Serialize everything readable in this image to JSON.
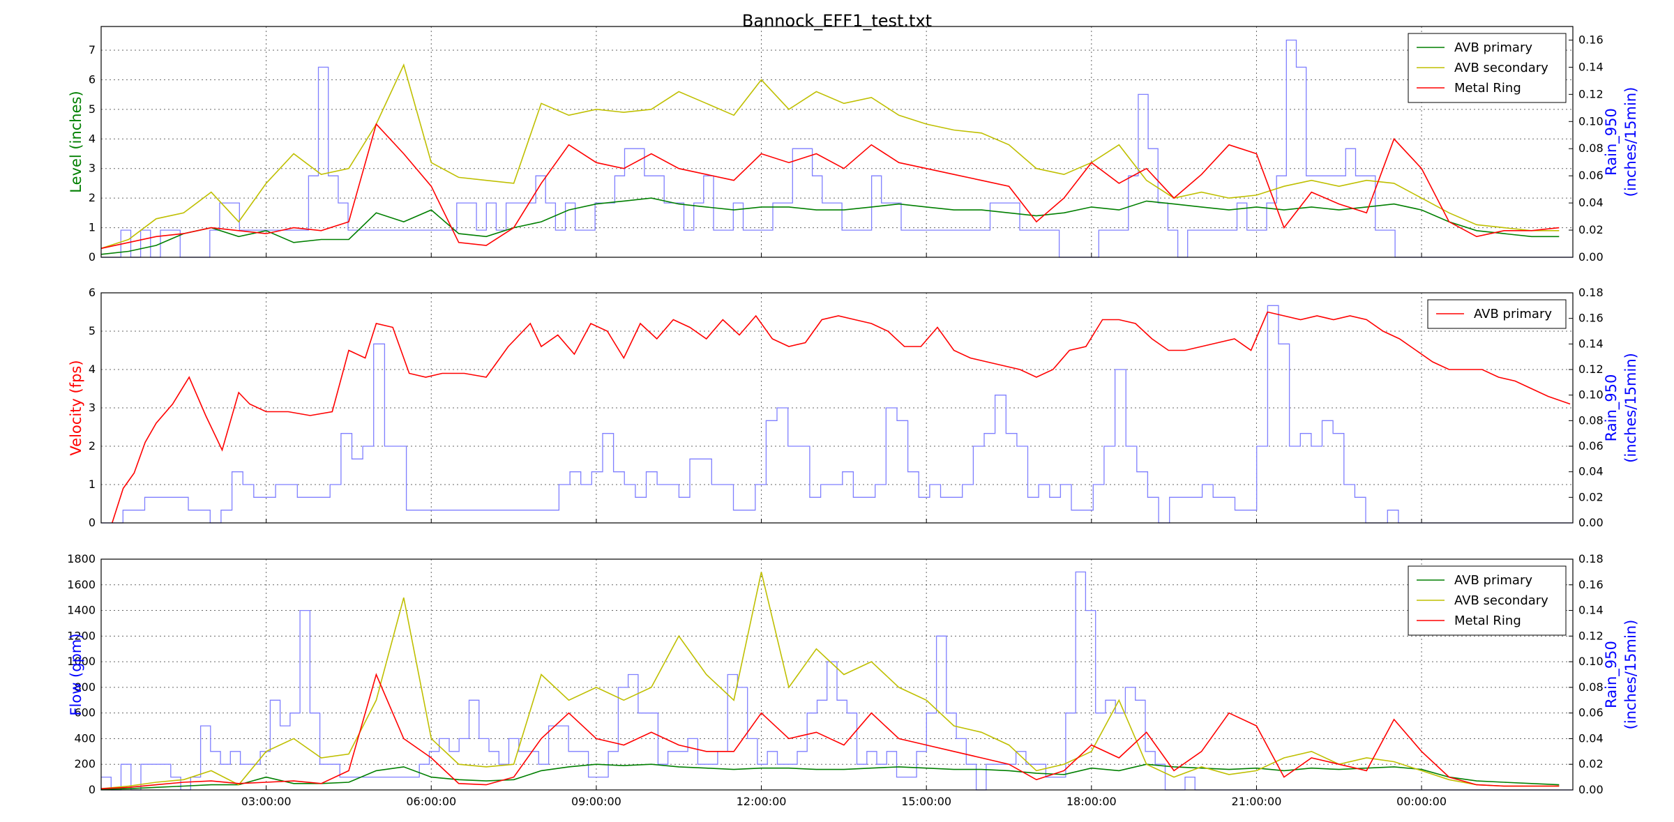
{
  "title": "Bannock_EFF1_test.txt",
  "colors": {
    "green": "#007f00",
    "yellow": "#bfbf00",
    "red": "#ff0000",
    "blue": "#0000ff",
    "rain": "#7f7fff"
  },
  "x_ticks": [
    "03:00:00",
    "06:00:00",
    "09:00:00",
    "12:00:00",
    "15:00:00",
    "18:00:00",
    "21:00:00",
    "00:00:00"
  ],
  "chart_data": [
    {
      "type": "line",
      "title": "Bannock_EFF1_test.txt",
      "ylabel": "Level (inches)",
      "y2label_line1": "Rain_950",
      "y2label_line2": "(inches/15min)",
      "ylim": [
        0,
        7.8
      ],
      "y2lim": [
        0,
        0.17
      ],
      "yticks": [
        "0",
        "1",
        "2",
        "3",
        "4",
        "5",
        "6",
        "7"
      ],
      "y2ticks": [
        "0.00",
        "0.02",
        "0.04",
        "0.06",
        "0.08",
        "0.10",
        "0.12",
        "0.14",
        "0.16"
      ],
      "legend": "top-right",
      "legend_entries": [
        "AVB primary",
        "AVB secondary",
        "Metal Ring"
      ],
      "x_hours": [
        0,
        0.5,
        1,
        1.5,
        2,
        2.5,
        3,
        3.5,
        4,
        4.5,
        5,
        5.5,
        6,
        6.5,
        7,
        7.5,
        8,
        8.5,
        9,
        9.5,
        10,
        10.5,
        11,
        11.5,
        12,
        12.5,
        13,
        13.5,
        14,
        14.5,
        15,
        15.5,
        16,
        16.5,
        17,
        17.5,
        18,
        18.5,
        19,
        19.5,
        20,
        20.5,
        21,
        21.5,
        22,
        22.5,
        23,
        23.5,
        24,
        24.5,
        25,
        25.5,
        26,
        26.5
      ],
      "series": [
        {
          "name": "AVB primary",
          "color": "#007f00",
          "values": [
            0.1,
            0.2,
            0.4,
            0.8,
            1.0,
            0.7,
            0.9,
            0.5,
            0.6,
            0.6,
            1.5,
            1.2,
            1.6,
            0.8,
            0.7,
            1.0,
            1.2,
            1.6,
            1.8,
            1.9,
            2.0,
            1.8,
            1.7,
            1.6,
            1.7,
            1.7,
            1.6,
            1.6,
            1.7,
            1.8,
            1.7,
            1.6,
            1.6,
            1.5,
            1.4,
            1.5,
            1.7,
            1.6,
            1.9,
            1.8,
            1.7,
            1.6,
            1.7,
            1.6,
            1.7,
            1.6,
            1.7,
            1.8,
            1.6,
            1.2,
            0.9,
            0.8,
            0.7,
            0.7
          ]
        },
        {
          "name": "AVB secondary",
          "color": "#bfbf00",
          "values": [
            0.3,
            0.6,
            1.3,
            1.5,
            2.2,
            1.2,
            2.5,
            3.5,
            2.8,
            3.0,
            4.5,
            6.5,
            3.2,
            2.7,
            2.6,
            2.5,
            5.2,
            4.8,
            5.0,
            4.9,
            5.0,
            5.6,
            5.2,
            4.8,
            6.0,
            5.0,
            5.6,
            5.2,
            5.4,
            4.8,
            4.5,
            4.3,
            4.2,
            3.8,
            3.0,
            2.8,
            3.2,
            3.8,
            2.6,
            2.0,
            2.2,
            2.0,
            2.1,
            2.4,
            2.6,
            2.4,
            2.6,
            2.5,
            2.0,
            1.5,
            1.1,
            1.0,
            0.9,
            0.9
          ]
        },
        {
          "name": "Metal Ring",
          "color": "#ff0000",
          "values": [
            0.3,
            0.5,
            0.7,
            0.8,
            1.0,
            0.9,
            0.8,
            1.0,
            0.9,
            1.2,
            4.5,
            3.5,
            2.4,
            0.5,
            0.4,
            1.0,
            2.5,
            3.8,
            3.2,
            3.0,
            3.5,
            3.0,
            2.8,
            2.6,
            3.5,
            3.2,
            3.5,
            3.0,
            3.8,
            3.2,
            3.0,
            2.8,
            2.6,
            2.4,
            1.2,
            2.0,
            3.2,
            2.5,
            3.0,
            2.0,
            2.8,
            3.8,
            3.5,
            1.0,
            2.2,
            1.8,
            1.5,
            4.0,
            3.0,
            1.2,
            0.7,
            0.9,
            0.9,
            1.0
          ]
        }
      ],
      "rain_steps": [
        0,
        0,
        0.02,
        0,
        0.02,
        0,
        0.02,
        0.02,
        0,
        0,
        0,
        0.02,
        0.04,
        0.04,
        0.02,
        0.02,
        0.02,
        0.02,
        0.02,
        0.02,
        0.02,
        0.06,
        0.14,
        0.06,
        0.04,
        0.02,
        0.02,
        0.02,
        0.02,
        0.02,
        0.02,
        0.02,
        0.02,
        0.02,
        0.02,
        0.02,
        0.04,
        0.04,
        0.02,
        0.04,
        0.02,
        0.04,
        0.04,
        0.04,
        0.06,
        0.04,
        0.02,
        0.04,
        0.02,
        0.02,
        0.04,
        0.04,
        0.06,
        0.08,
        0.08,
        0.06,
        0.06,
        0.04,
        0.04,
        0.02,
        0.04,
        0.06,
        0.02,
        0.02,
        0.04,
        0.02,
        0.02,
        0.02,
        0.04,
        0.04,
        0.08,
        0.08,
        0.06,
        0.04,
        0.04,
        0.02,
        0.02,
        0.02,
        0.06,
        0.04,
        0.04,
        0.02,
        0.02,
        0.02,
        0.02,
        0.02,
        0.02,
        0.02,
        0.02,
        0.02,
        0.04,
        0.04,
        0.04,
        0.02,
        0.02,
        0.02,
        0.02,
        0,
        0,
        0,
        0,
        0.02,
        0.02,
        0.02,
        0.06,
        0.12,
        0.08,
        0.04,
        0.02,
        0,
        0.02,
        0.02,
        0.02,
        0.02,
        0.02,
        0.04,
        0.02,
        0.02,
        0.04,
        0.06,
        0.16,
        0.14,
        0.06,
        0.06,
        0.06,
        0.06,
        0.08,
        0.06,
        0.06,
        0.02,
        0.02,
        0,
        0,
        0,
        0,
        0,
        0,
        0,
        0,
        0,
        0,
        0,
        0,
        0,
        0,
        0,
        0,
        0,
        0
      ]
    },
    {
      "type": "line",
      "ylabel": "Velocity (fps)",
      "y2label_line1": "Rain_950",
      "y2label_line2": "(inches/15min)",
      "ylim": [
        0,
        6
      ],
      "y2lim": [
        0,
        0.18
      ],
      "yticks": [
        "0",
        "1",
        "2",
        "3",
        "4",
        "5",
        "6"
      ],
      "y2ticks": [
        "0.00",
        "0.02",
        "0.04",
        "0.06",
        "0.08",
        "0.10",
        "0.12",
        "0.14",
        "0.16",
        "0.18"
      ],
      "legend": "top-right",
      "legend_entries": [
        "AVB primary"
      ],
      "x_hours": [
        0.2,
        0.4,
        0.6,
        0.8,
        1.0,
        1.3,
        1.6,
        1.9,
        2.2,
        2.5,
        2.7,
        3.0,
        3.4,
        3.8,
        4.2,
        4.5,
        4.8,
        5.0,
        5.3,
        5.6,
        5.9,
        6.2,
        6.6,
        7.0,
        7.4,
        7.8,
        8.0,
        8.3,
        8.6,
        8.9,
        9.2,
        9.5,
        9.8,
        10.1,
        10.4,
        10.7,
        11.0,
        11.3,
        11.6,
        11.9,
        12.2,
        12.5,
        12.8,
        13.1,
        13.4,
        13.7,
        14.0,
        14.3,
        14.6,
        14.9,
        15.2,
        15.5,
        15.8,
        16.1,
        16.4,
        16.7,
        17.0,
        17.3,
        17.6,
        17.9,
        18.2,
        18.5,
        18.8,
        19.1,
        19.4,
        19.7,
        20.0,
        20.3,
        20.6,
        20.9,
        21.2,
        21.5,
        21.8,
        22.1,
        22.4,
        22.7,
        23.0,
        23.3,
        23.6,
        23.9,
        24.2,
        24.5,
        24.8,
        25.1,
        25.4,
        25.7,
        26.0,
        26.3,
        26.7
      ],
      "series": [
        {
          "name": "AVB primary",
          "color": "#ff0000",
          "values": [
            0,
            0.9,
            1.3,
            2.1,
            2.6,
            3.1,
            3.8,
            2.8,
            1.9,
            3.4,
            3.1,
            2.9,
            2.9,
            2.8,
            2.9,
            4.5,
            4.3,
            5.2,
            5.1,
            3.9,
            3.8,
            3.9,
            3.9,
            3.8,
            4.6,
            5.2,
            4.6,
            4.9,
            4.4,
            5.2,
            5.0,
            4.3,
            5.2,
            4.8,
            5.3,
            5.1,
            4.8,
            5.3,
            4.9,
            5.4,
            4.8,
            4.6,
            4.7,
            5.3,
            5.4,
            5.3,
            5.2,
            5.0,
            4.6,
            4.6,
            5.1,
            4.5,
            4.3,
            4.2,
            4.1,
            4.0,
            3.8,
            4.0,
            4.5,
            4.6,
            5.3,
            5.3,
            5.2,
            4.8,
            4.5,
            4.5,
            4.6,
            4.7,
            4.8,
            4.5,
            5.5,
            5.4,
            5.3,
            5.4,
            5.3,
            5.4,
            5.3,
            5.0,
            4.8,
            4.5,
            4.2,
            4.0,
            4.0,
            4.0,
            3.8,
            3.7,
            3.5,
            3.3,
            3.1
          ]
        }
      ],
      "rain_steps": [
        0,
        0,
        0.01,
        0.01,
        0.02,
        0.02,
        0.02,
        0.02,
        0.01,
        0.01,
        0,
        0.01,
        0.04,
        0.03,
        0.02,
        0.02,
        0.03,
        0.03,
        0.02,
        0.02,
        0.02,
        0.03,
        0.07,
        0.05,
        0.06,
        0.14,
        0.06,
        0.06,
        0.01,
        0.01,
        0.01,
        0.01,
        0.01,
        0.01,
        0.01,
        0.01,
        0.01,
        0.01,
        0.01,
        0.01,
        0.01,
        0.01,
        0.03,
        0.04,
        0.03,
        0.04,
        0.07,
        0.04,
        0.03,
        0.02,
        0.04,
        0.03,
        0.03,
        0.02,
        0.05,
        0.05,
        0.03,
        0.03,
        0.01,
        0.01,
        0.03,
        0.08,
        0.09,
        0.06,
        0.06,
        0.02,
        0.03,
        0.03,
        0.04,
        0.02,
        0.02,
        0.03,
        0.09,
        0.08,
        0.04,
        0.02,
        0.03,
        0.02,
        0.02,
        0.03,
        0.06,
        0.07,
        0.1,
        0.07,
        0.06,
        0.02,
        0.03,
        0.02,
        0.03,
        0.01,
        0.01,
        0.03,
        0.06,
        0.12,
        0.06,
        0.04,
        0.02,
        0,
        0.02,
        0.02,
        0.02,
        0.03,
        0.02,
        0.02,
        0.01,
        0.01,
        0.06,
        0.17,
        0.14,
        0.06,
        0.07,
        0.06,
        0.08,
        0.07,
        0.03,
        0.02,
        0,
        0,
        0.01,
        0,
        0,
        0,
        0,
        0,
        0,
        0,
        0,
        0,
        0,
        0,
        0,
        0,
        0,
        0,
        0
      ]
    },
    {
      "type": "line",
      "ylabel": "Flow (gpm)",
      "y2label_line1": "Rain_950",
      "y2label_line2": "(inches/15min)",
      "ylim": [
        0,
        1800
      ],
      "y2lim": [
        0,
        0.18
      ],
      "yticks": [
        "0",
        "200",
        "400",
        "600",
        "800",
        "1000",
        "1200",
        "1400",
        "1600",
        "1800"
      ],
      "y2ticks": [
        "0.00",
        "0.02",
        "0.04",
        "0.06",
        "0.08",
        "0.10",
        "0.12",
        "0.14",
        "0.16",
        "0.18"
      ],
      "legend": "top-right",
      "legend_entries": [
        "AVB primary",
        "AVB secondary",
        "Metal Ring"
      ],
      "x_hours": [
        0,
        0.5,
        1,
        1.5,
        2,
        2.5,
        3,
        3.5,
        4,
        4.5,
        5,
        5.5,
        6,
        6.5,
        7,
        7.5,
        8,
        8.5,
        9,
        9.5,
        10,
        10.5,
        11,
        11.5,
        12,
        12.5,
        13,
        13.5,
        14,
        14.5,
        15,
        15.5,
        16,
        16.5,
        17,
        17.5,
        18,
        18.5,
        19,
        19.5,
        20,
        20.5,
        21,
        21.5,
        22,
        22.5,
        23,
        23.5,
        24,
        24.5,
        25,
        25.5,
        26,
        26.5
      ],
      "series": [
        {
          "name": "AVB primary",
          "color": "#007f00",
          "values": [
            5,
            10,
            20,
            30,
            40,
            40,
            100,
            50,
            50,
            60,
            150,
            180,
            100,
            80,
            70,
            80,
            150,
            180,
            200,
            190,
            200,
            180,
            170,
            160,
            170,
            170,
            160,
            160,
            170,
            180,
            170,
            160,
            160,
            150,
            130,
            120,
            170,
            150,
            200,
            180,
            170,
            160,
            170,
            150,
            170,
            160,
            170,
            180,
            160,
            100,
            70,
            60,
            50,
            40
          ]
        },
        {
          "name": "AVB secondary",
          "color": "#bfbf00",
          "values": [
            10,
            30,
            60,
            80,
            150,
            40,
            300,
            400,
            250,
            280,
            700,
            1500,
            400,
            200,
            180,
            200,
            900,
            700,
            800,
            700,
            800,
            1200,
            900,
            700,
            1700,
            800,
            1100,
            900,
            1000,
            800,
            700,
            500,
            450,
            350,
            150,
            200,
            300,
            700,
            200,
            100,
            180,
            120,
            150,
            250,
            300,
            200,
            250,
            220,
            150,
            80,
            40,
            30,
            30,
            30
          ]
        },
        {
          "name": "Metal Ring",
          "color": "#ff0000",
          "values": [
            10,
            20,
            40,
            60,
            70,
            50,
            60,
            70,
            50,
            150,
            900,
            400,
            250,
            50,
            40,
            100,
            400,
            600,
            400,
            350,
            450,
            350,
            300,
            300,
            600,
            400,
            450,
            350,
            600,
            400,
            350,
            300,
            250,
            200,
            80,
            150,
            350,
            250,
            450,
            150,
            300,
            600,
            500,
            100,
            250,
            200,
            150,
            550,
            300,
            100,
            40,
            30,
            30,
            30
          ]
        }
      ],
      "rain_steps": [
        0.01,
        0,
        0.02,
        0,
        0.02,
        0.02,
        0.02,
        0.01,
        0,
        0.01,
        0.05,
        0.03,
        0.02,
        0.03,
        0.02,
        0.02,
        0.03,
        0.07,
        0.05,
        0.06,
        0.14,
        0.06,
        0.02,
        0.02,
        0.01,
        0.01,
        0.01,
        0.01,
        0.01,
        0.01,
        0.01,
        0.01,
        0.02,
        0.03,
        0.04,
        0.03,
        0.04,
        0.07,
        0.04,
        0.03,
        0.02,
        0.04,
        0.03,
        0.03,
        0.02,
        0.05,
        0.05,
        0.03,
        0.03,
        0.01,
        0.01,
        0.03,
        0.08,
        0.09,
        0.06,
        0.06,
        0.02,
        0.03,
        0.03,
        0.04,
        0.02,
        0.02,
        0.03,
        0.09,
        0.08,
        0.04,
        0.02,
        0.03,
        0.02,
        0.02,
        0.03,
        0.06,
        0.07,
        0.1,
        0.07,
        0.06,
        0.02,
        0.03,
        0.02,
        0.03,
        0.01,
        0.01,
        0.03,
        0.06,
        0.12,
        0.06,
        0.04,
        0.02,
        0,
        0.02,
        0.02,
        0.02,
        0.03,
        0.02,
        0.02,
        0.01,
        0.01,
        0.06,
        0.17,
        0.14,
        0.06,
        0.07,
        0.06,
        0.08,
        0.07,
        0.03,
        0.02,
        0,
        0,
        0.01,
        0,
        0,
        0,
        0,
        0,
        0,
        0,
        0,
        0,
        0,
        0,
        0,
        0,
        0,
        0,
        0,
        0,
        0,
        0,
        0,
        0,
        0,
        0,
        0,
        0,
        0,
        0,
        0,
        0,
        0,
        0,
        0,
        0,
        0,
        0,
        0,
        0,
        0
      ]
    }
  ]
}
